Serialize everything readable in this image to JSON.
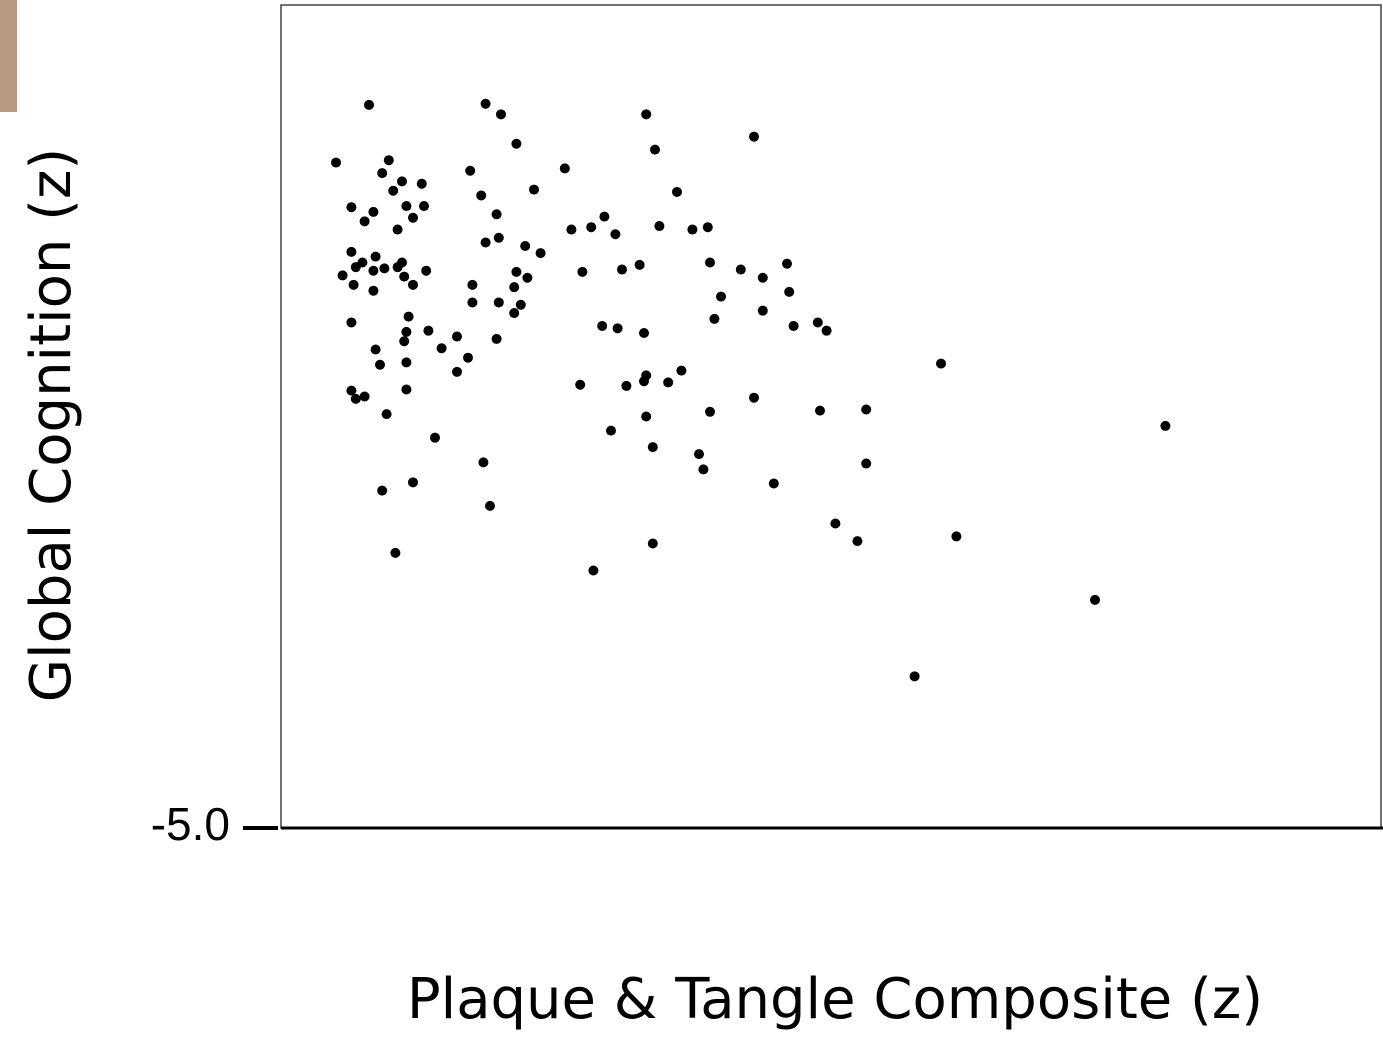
{
  "chart_data": {
    "type": "scatter",
    "xlabel": "Plaque & Tangle Composite (z)",
    "ylabel": "Global Cognition (z)",
    "color": "#000000",
    "xlim": [
      -1,
      4
    ],
    "ylim": [
      -5,
      2
    ],
    "yticks": [
      {
        "value": -5,
        "label": "-5.0"
      }
    ],
    "x": [
      -0.75,
      -0.6,
      -0.07,
      0,
      0.66,
      0.7,
      1.15,
      0.07,
      -0.51,
      -0.54,
      -0.45,
      -0.36,
      -0.49,
      -0.14,
      0.29,
      0.15,
      0.8,
      -0.09,
      -0.68,
      -0.58,
      -0.62,
      -0.43,
      -0.35,
      -0.4,
      -0.02,
      -0.47,
      0.47,
      0.41,
      0.32,
      0.52,
      0.72,
      0.87,
      0.94,
      -0.07,
      -0.01,
      0.11,
      0.18,
      -0.68,
      -0.63,
      -0.57,
      -0.66,
      -0.72,
      -0.58,
      -0.53,
      -0.47,
      -0.45,
      -0.44,
      -0.34,
      -0.67,
      -0.58,
      -0.4,
      -0.13,
      -0.13,
      0.07,
      0.12,
      0.06,
      -0.01,
      0.09,
      0.06,
      0.37,
      0.55,
      0.63,
      0.95,
      1.09,
      1.19,
      1.3,
      1.0,
      1.31,
      1.19,
      0.97,
      -0.68,
      -0.42,
      -0.43,
      -0.44,
      -0.33,
      -0.2,
      -0.27,
      -0.02,
      0.46,
      0.53,
      0.65,
      1.33,
      1.44,
      1.48,
      -0.57,
      -0.55,
      -0.43,
      -0.15,
      -0.2,
      -0.68,
      -0.66,
      -0.62,
      -0.43,
      -0.52,
      0.36,
      0.57,
      0.65,
      0.66,
      0.76,
      0.82,
      1.15,
      2.0,
      -0.3,
      0.5,
      0.66,
      0.95,
      1.45,
      1.66,
      0.69,
      0.9,
      0.92,
      1.66,
      3.02,
      -0.08,
      -0.54,
      -0.4,
      -0.05,
      1.24,
      1.52,
      1.62,
      2.07,
      0.69,
      -0.48,
      0.42,
      2.7,
      1.88
    ],
    "values": [
      0.66,
      1.15,
      1.16,
      1.07,
      1.07,
      0.77,
      0.88,
      0.82,
      0.68,
      0.57,
      0.5,
      0.48,
      0.42,
      0.59,
      0.61,
      0.43,
      0.41,
      0.38,
      0.28,
      0.24,
      0.16,
      0.29,
      0.29,
      0.19,
      0.22,
      0.09,
      0.2,
      0.11,
      0.09,
      0.05,
      0.12,
      0.09,
      0.11,
      -0.02,
      0.02,
      -0.05,
      -0.11,
      -0.1,
      -0.19,
      -0.14,
      -0.23,
      -0.3,
      -0.26,
      -0.24,
      -0.23,
      -0.19,
      -0.31,
      -0.26,
      -0.38,
      -0.43,
      -0.38,
      -0.38,
      -0.53,
      -0.27,
      -0.32,
      -0.4,
      -0.53,
      -0.55,
      -0.62,
      -0.27,
      -0.25,
      -0.21,
      -0.19,
      -0.25,
      -0.32,
      -0.2,
      -0.48,
      -0.44,
      -0.6,
      -0.67,
      -0.7,
      -0.65,
      -0.78,
      -0.86,
      -0.77,
      -0.82,
      -0.92,
      -0.84,
      -0.73,
      -0.75,
      -0.79,
      -0.73,
      -0.7,
      -0.77,
      -0.93,
      -1.06,
      -1.04,
      -1.0,
      -1.12,
      -1.28,
      -1.35,
      -1.33,
      -1.27,
      -1.48,
      -1.23,
      -1.24,
      -1.2,
      -1.15,
      -1.21,
      -1.11,
      -1.34,
      -1.05,
      -1.68,
      -1.62,
      -1.5,
      -1.46,
      -1.45,
      -1.44,
      -1.76,
      -1.82,
      -1.95,
      -1.9,
      -1.58,
      -1.89,
      -2.13,
      -2.06,
      -2.26,
      -2.07,
      -2.41,
      -2.56,
      -2.52,
      -2.58,
      -2.66,
      -2.81,
      -3.06,
      -3.71
    ]
  }
}
